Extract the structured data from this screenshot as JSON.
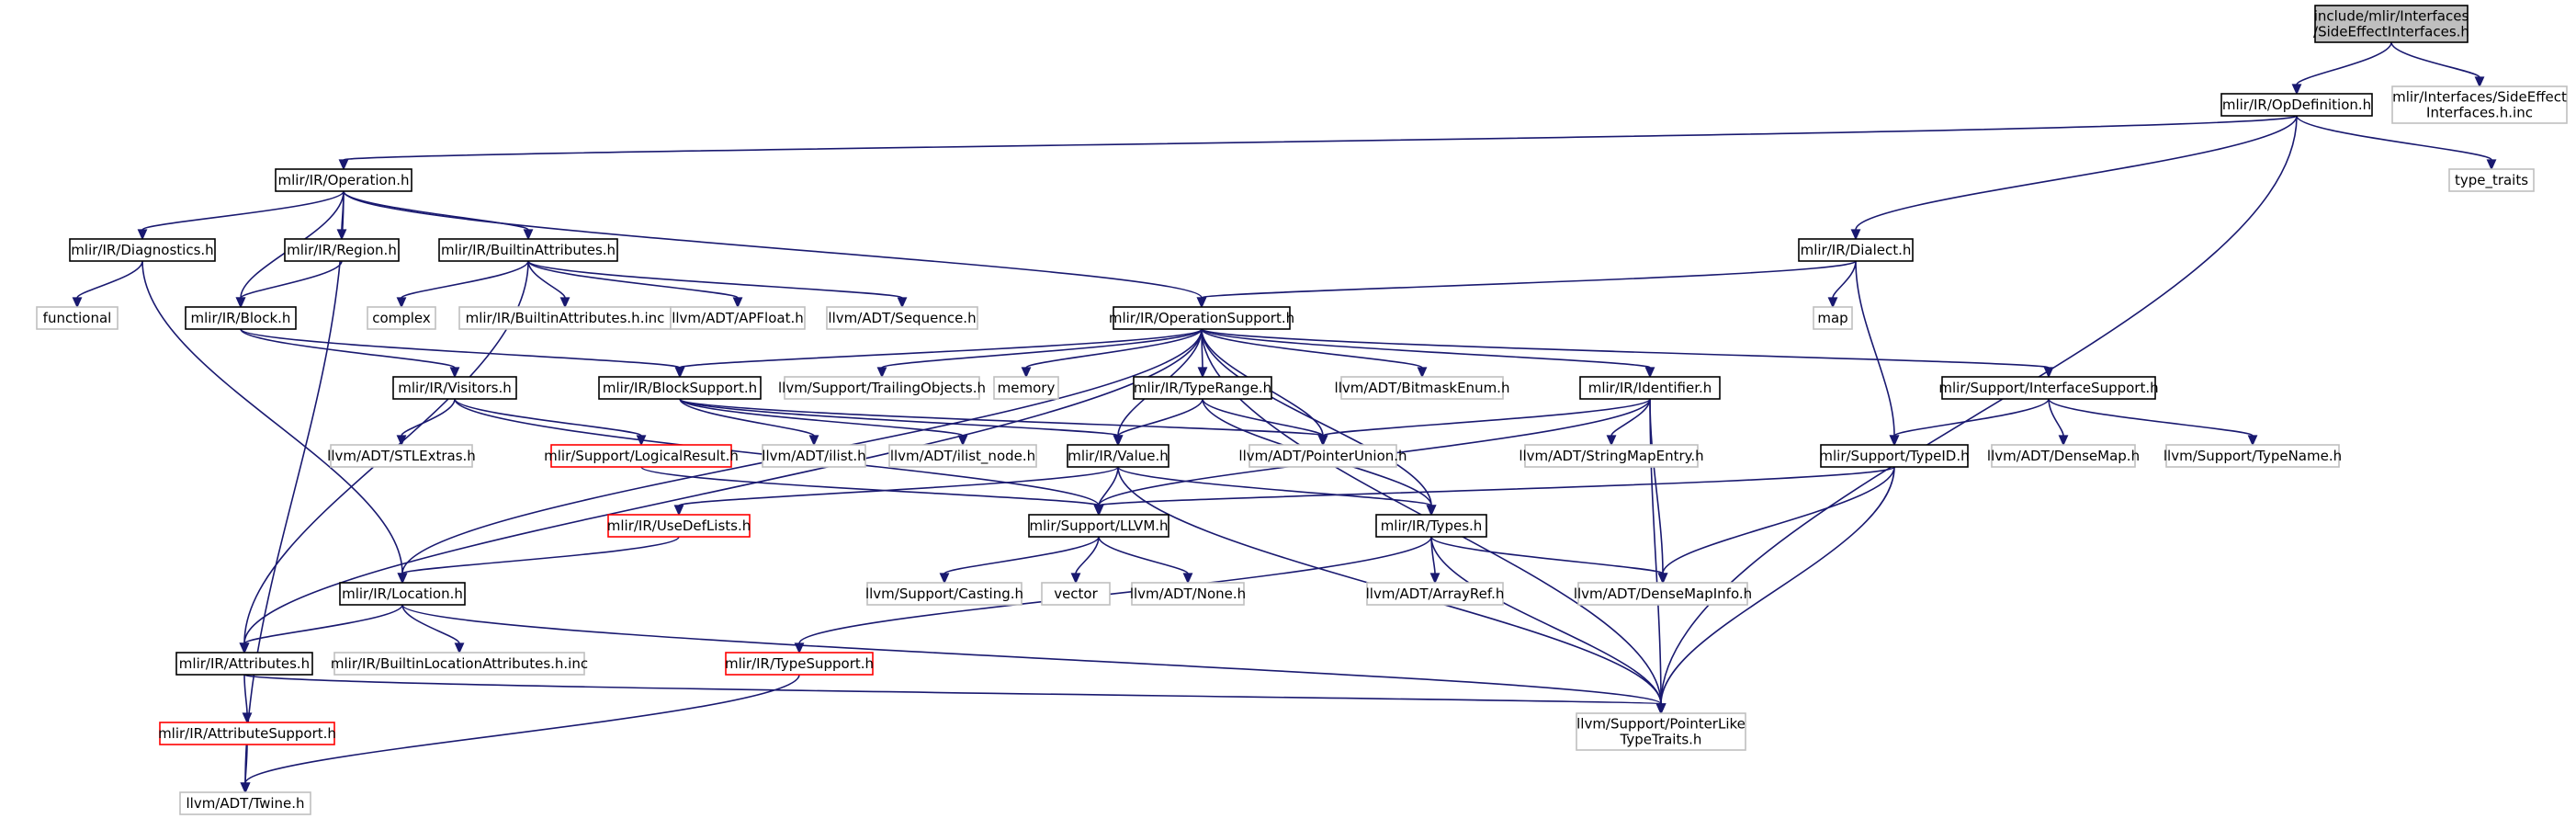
{
  "colors": {
    "edge": "#191970",
    "root_fill": "#bfbfbf",
    "border_normal": "#000000",
    "border_external": "#bfbfbf",
    "border_incomplete": "#ff0000",
    "background": "#ffffff"
  },
  "nodes": {
    "root": {
      "lines": [
        "include/mlir/Interfaces",
        "/SideEffectInterfaces.h"
      ],
      "style": "root"
    },
    "opdef": {
      "lines": [
        "mlir/IR/OpDefinition.h"
      ],
      "style": "normal"
    },
    "sideinc": {
      "lines": [
        "mlir/Interfaces/SideEffect",
        "Interfaces.h.inc"
      ],
      "style": "external"
    },
    "operation": {
      "lines": [
        "mlir/IR/Operation.h"
      ],
      "style": "normal"
    },
    "typetraits": {
      "lines": [
        "type_traits"
      ],
      "style": "external"
    },
    "diagnostics": {
      "lines": [
        "mlir/IR/Diagnostics.h"
      ],
      "style": "normal"
    },
    "region": {
      "lines": [
        "mlir/IR/Region.h"
      ],
      "style": "normal"
    },
    "builtinattr": {
      "lines": [
        "mlir/IR/BuiltinAttributes.h"
      ],
      "style": "normal"
    },
    "dialect": {
      "lines": [
        "mlir/IR/Dialect.h"
      ],
      "style": "normal"
    },
    "functional": {
      "lines": [
        "functional"
      ],
      "style": "external"
    },
    "block": {
      "lines": [
        "mlir/IR/Block.h"
      ],
      "style": "normal"
    },
    "complex": {
      "lines": [
        "complex"
      ],
      "style": "external"
    },
    "builtinattrinc": {
      "lines": [
        "mlir/IR/BuiltinAttributes.h.inc"
      ],
      "style": "external"
    },
    "apfloat": {
      "lines": [
        "llvm/ADT/APFloat.h"
      ],
      "style": "external"
    },
    "sequence": {
      "lines": [
        "llvm/ADT/Sequence.h"
      ],
      "style": "external"
    },
    "opsupport": {
      "lines": [
        "mlir/IR/OperationSupport.h"
      ],
      "style": "normal"
    },
    "map": {
      "lines": [
        "map"
      ],
      "style": "external"
    },
    "visitors": {
      "lines": [
        "mlir/IR/Visitors.h"
      ],
      "style": "normal"
    },
    "blocksupport": {
      "lines": [
        "mlir/IR/BlockSupport.h"
      ],
      "style": "normal"
    },
    "trailing": {
      "lines": [
        "llvm/Support/TrailingObjects.h"
      ],
      "style": "external"
    },
    "memory": {
      "lines": [
        "memory"
      ],
      "style": "external"
    },
    "typerange": {
      "lines": [
        "mlir/IR/TypeRange.h"
      ],
      "style": "normal"
    },
    "bitmask": {
      "lines": [
        "llvm/ADT/BitmaskEnum.h"
      ],
      "style": "external"
    },
    "identifier": {
      "lines": [
        "mlir/IR/Identifier.h"
      ],
      "style": "normal"
    },
    "interfacesup": {
      "lines": [
        "mlir/Support/InterfaceSupport.h"
      ],
      "style": "normal"
    },
    "stlextras": {
      "lines": [
        "llvm/ADT/STLExtras.h"
      ],
      "style": "external"
    },
    "logicalresult": {
      "lines": [
        "mlir/Support/LogicalResult.h"
      ],
      "style": "incomplete"
    },
    "ilist": {
      "lines": [
        "llvm/ADT/ilist.h"
      ],
      "style": "external"
    },
    "ilistnode": {
      "lines": [
        "llvm/ADT/ilist_node.h"
      ],
      "style": "external"
    },
    "value": {
      "lines": [
        "mlir/IR/Value.h"
      ],
      "style": "normal"
    },
    "pointerunion": {
      "lines": [
        "llvm/ADT/PointerUnion.h"
      ],
      "style": "external"
    },
    "stringmapentry": {
      "lines": [
        "llvm/ADT/StringMapEntry.h"
      ],
      "style": "external"
    },
    "typeid": {
      "lines": [
        "mlir/Support/TypeID.h"
      ],
      "style": "normal"
    },
    "densemap": {
      "lines": [
        "llvm/ADT/DenseMap.h"
      ],
      "style": "external"
    },
    "typename": {
      "lines": [
        "llvm/Support/TypeName.h"
      ],
      "style": "external"
    },
    "usedeflists": {
      "lines": [
        "mlir/IR/UseDefLists.h"
      ],
      "style": "incomplete"
    },
    "llvmh": {
      "lines": [
        "mlir/Support/LLVM.h"
      ],
      "style": "normal"
    },
    "types": {
      "lines": [
        "mlir/IR/Types.h"
      ],
      "style": "normal"
    },
    "location": {
      "lines": [
        "mlir/IR/Location.h"
      ],
      "style": "normal"
    },
    "casting": {
      "lines": [
        "llvm/Support/Casting.h"
      ],
      "style": "external"
    },
    "vector": {
      "lines": [
        "vector"
      ],
      "style": "external"
    },
    "none": {
      "lines": [
        "llvm/ADT/None.h"
      ],
      "style": "external"
    },
    "arrayref": {
      "lines": [
        "llvm/ADT/ArrayRef.h"
      ],
      "style": "external"
    },
    "densemapinfo": {
      "lines": [
        "llvm/ADT/DenseMapInfo.h"
      ],
      "style": "external"
    },
    "attributes": {
      "lines": [
        "mlir/IR/Attributes.h"
      ],
      "style": "normal"
    },
    "builtinlocinc": {
      "lines": [
        "mlir/IR/BuiltinLocationAttributes.h.inc"
      ],
      "style": "external"
    },
    "typesupport": {
      "lines": [
        "mlir/IR/TypeSupport.h"
      ],
      "style": "incomplete"
    },
    "attrsupport": {
      "lines": [
        "mlir/IR/AttributeSupport.h"
      ],
      "style": "incomplete"
    },
    "pointerlike": {
      "lines": [
        "llvm/Support/PointerLike",
        "TypeTraits.h"
      ],
      "style": "external"
    },
    "twine": {
      "lines": [
        "llvm/ADT/Twine.h"
      ],
      "style": "external"
    }
  },
  "edges": [
    [
      "root",
      "opdef"
    ],
    [
      "root",
      "sideinc"
    ],
    [
      "opdef",
      "operation"
    ],
    [
      "opdef",
      "dialect"
    ],
    [
      "opdef",
      "typetraits"
    ],
    [
      "opdef",
      "pointerlike"
    ],
    [
      "operation",
      "diagnostics"
    ],
    [
      "operation",
      "region"
    ],
    [
      "operation",
      "block"
    ],
    [
      "operation",
      "builtinattr"
    ],
    [
      "operation",
      "opsupport"
    ],
    [
      "operation",
      "twine"
    ],
    [
      "diagnostics",
      "functional"
    ],
    [
      "diagnostics",
      "location"
    ],
    [
      "region",
      "block"
    ],
    [
      "builtinattr",
      "complex"
    ],
    [
      "builtinattr",
      "builtinattrinc"
    ],
    [
      "builtinattr",
      "apfloat"
    ],
    [
      "builtinattr",
      "sequence"
    ],
    [
      "builtinattr",
      "attributes"
    ],
    [
      "block",
      "visitors"
    ],
    [
      "block",
      "blocksupport"
    ],
    [
      "dialect",
      "opsupport"
    ],
    [
      "dialect",
      "map"
    ],
    [
      "dialect",
      "typeid"
    ],
    [
      "opsupport",
      "blocksupport"
    ],
    [
      "opsupport",
      "trailing"
    ],
    [
      "opsupport",
      "memory"
    ],
    [
      "opsupport",
      "typerange"
    ],
    [
      "opsupport",
      "bitmask"
    ],
    [
      "opsupport",
      "identifier"
    ],
    [
      "opsupport",
      "interfacesup"
    ],
    [
      "opsupport",
      "value"
    ],
    [
      "opsupport",
      "pointerunion"
    ],
    [
      "opsupport",
      "location"
    ],
    [
      "opsupport",
      "attributes"
    ],
    [
      "opsupport",
      "types"
    ],
    [
      "opsupport",
      "pointerlike"
    ],
    [
      "visitors",
      "stlextras"
    ],
    [
      "visitors",
      "logicalresult"
    ],
    [
      "visitors",
      "llvmh"
    ],
    [
      "blocksupport",
      "ilist"
    ],
    [
      "blocksupport",
      "ilistnode"
    ],
    [
      "blocksupport",
      "value"
    ],
    [
      "blocksupport",
      "pointerunion"
    ],
    [
      "typerange",
      "value"
    ],
    [
      "typerange",
      "pointerunion"
    ],
    [
      "typerange",
      "types"
    ],
    [
      "identifier",
      "pointerunion"
    ],
    [
      "identifier",
      "stringmapentry"
    ],
    [
      "identifier",
      "llvmh"
    ],
    [
      "identifier",
      "densemapinfo"
    ],
    [
      "identifier",
      "pointerlike"
    ],
    [
      "interfacesup",
      "typeid"
    ],
    [
      "interfacesup",
      "densemap"
    ],
    [
      "interfacesup",
      "typename"
    ],
    [
      "logicalresult",
      "llvmh"
    ],
    [
      "value",
      "usedeflists"
    ],
    [
      "value",
      "llvmh"
    ],
    [
      "value",
      "types"
    ],
    [
      "value",
      "pointerlike"
    ],
    [
      "typeid",
      "llvmh"
    ],
    [
      "typeid",
      "densemapinfo"
    ],
    [
      "typeid",
      "pointerlike"
    ],
    [
      "usedeflists",
      "location"
    ],
    [
      "llvmh",
      "casting"
    ],
    [
      "llvmh",
      "vector"
    ],
    [
      "llvmh",
      "none"
    ],
    [
      "types",
      "arrayref"
    ],
    [
      "types",
      "densemapinfo"
    ],
    [
      "types",
      "typesupport"
    ],
    [
      "types",
      "pointerlike"
    ],
    [
      "location",
      "attributes"
    ],
    [
      "location",
      "builtinlocinc"
    ],
    [
      "location",
      "pointerlike"
    ],
    [
      "attributes",
      "attrsupport"
    ],
    [
      "attributes",
      "pointerlike"
    ],
    [
      "attrsupport",
      "twine"
    ],
    [
      "typesupport",
      "twine"
    ]
  ]
}
